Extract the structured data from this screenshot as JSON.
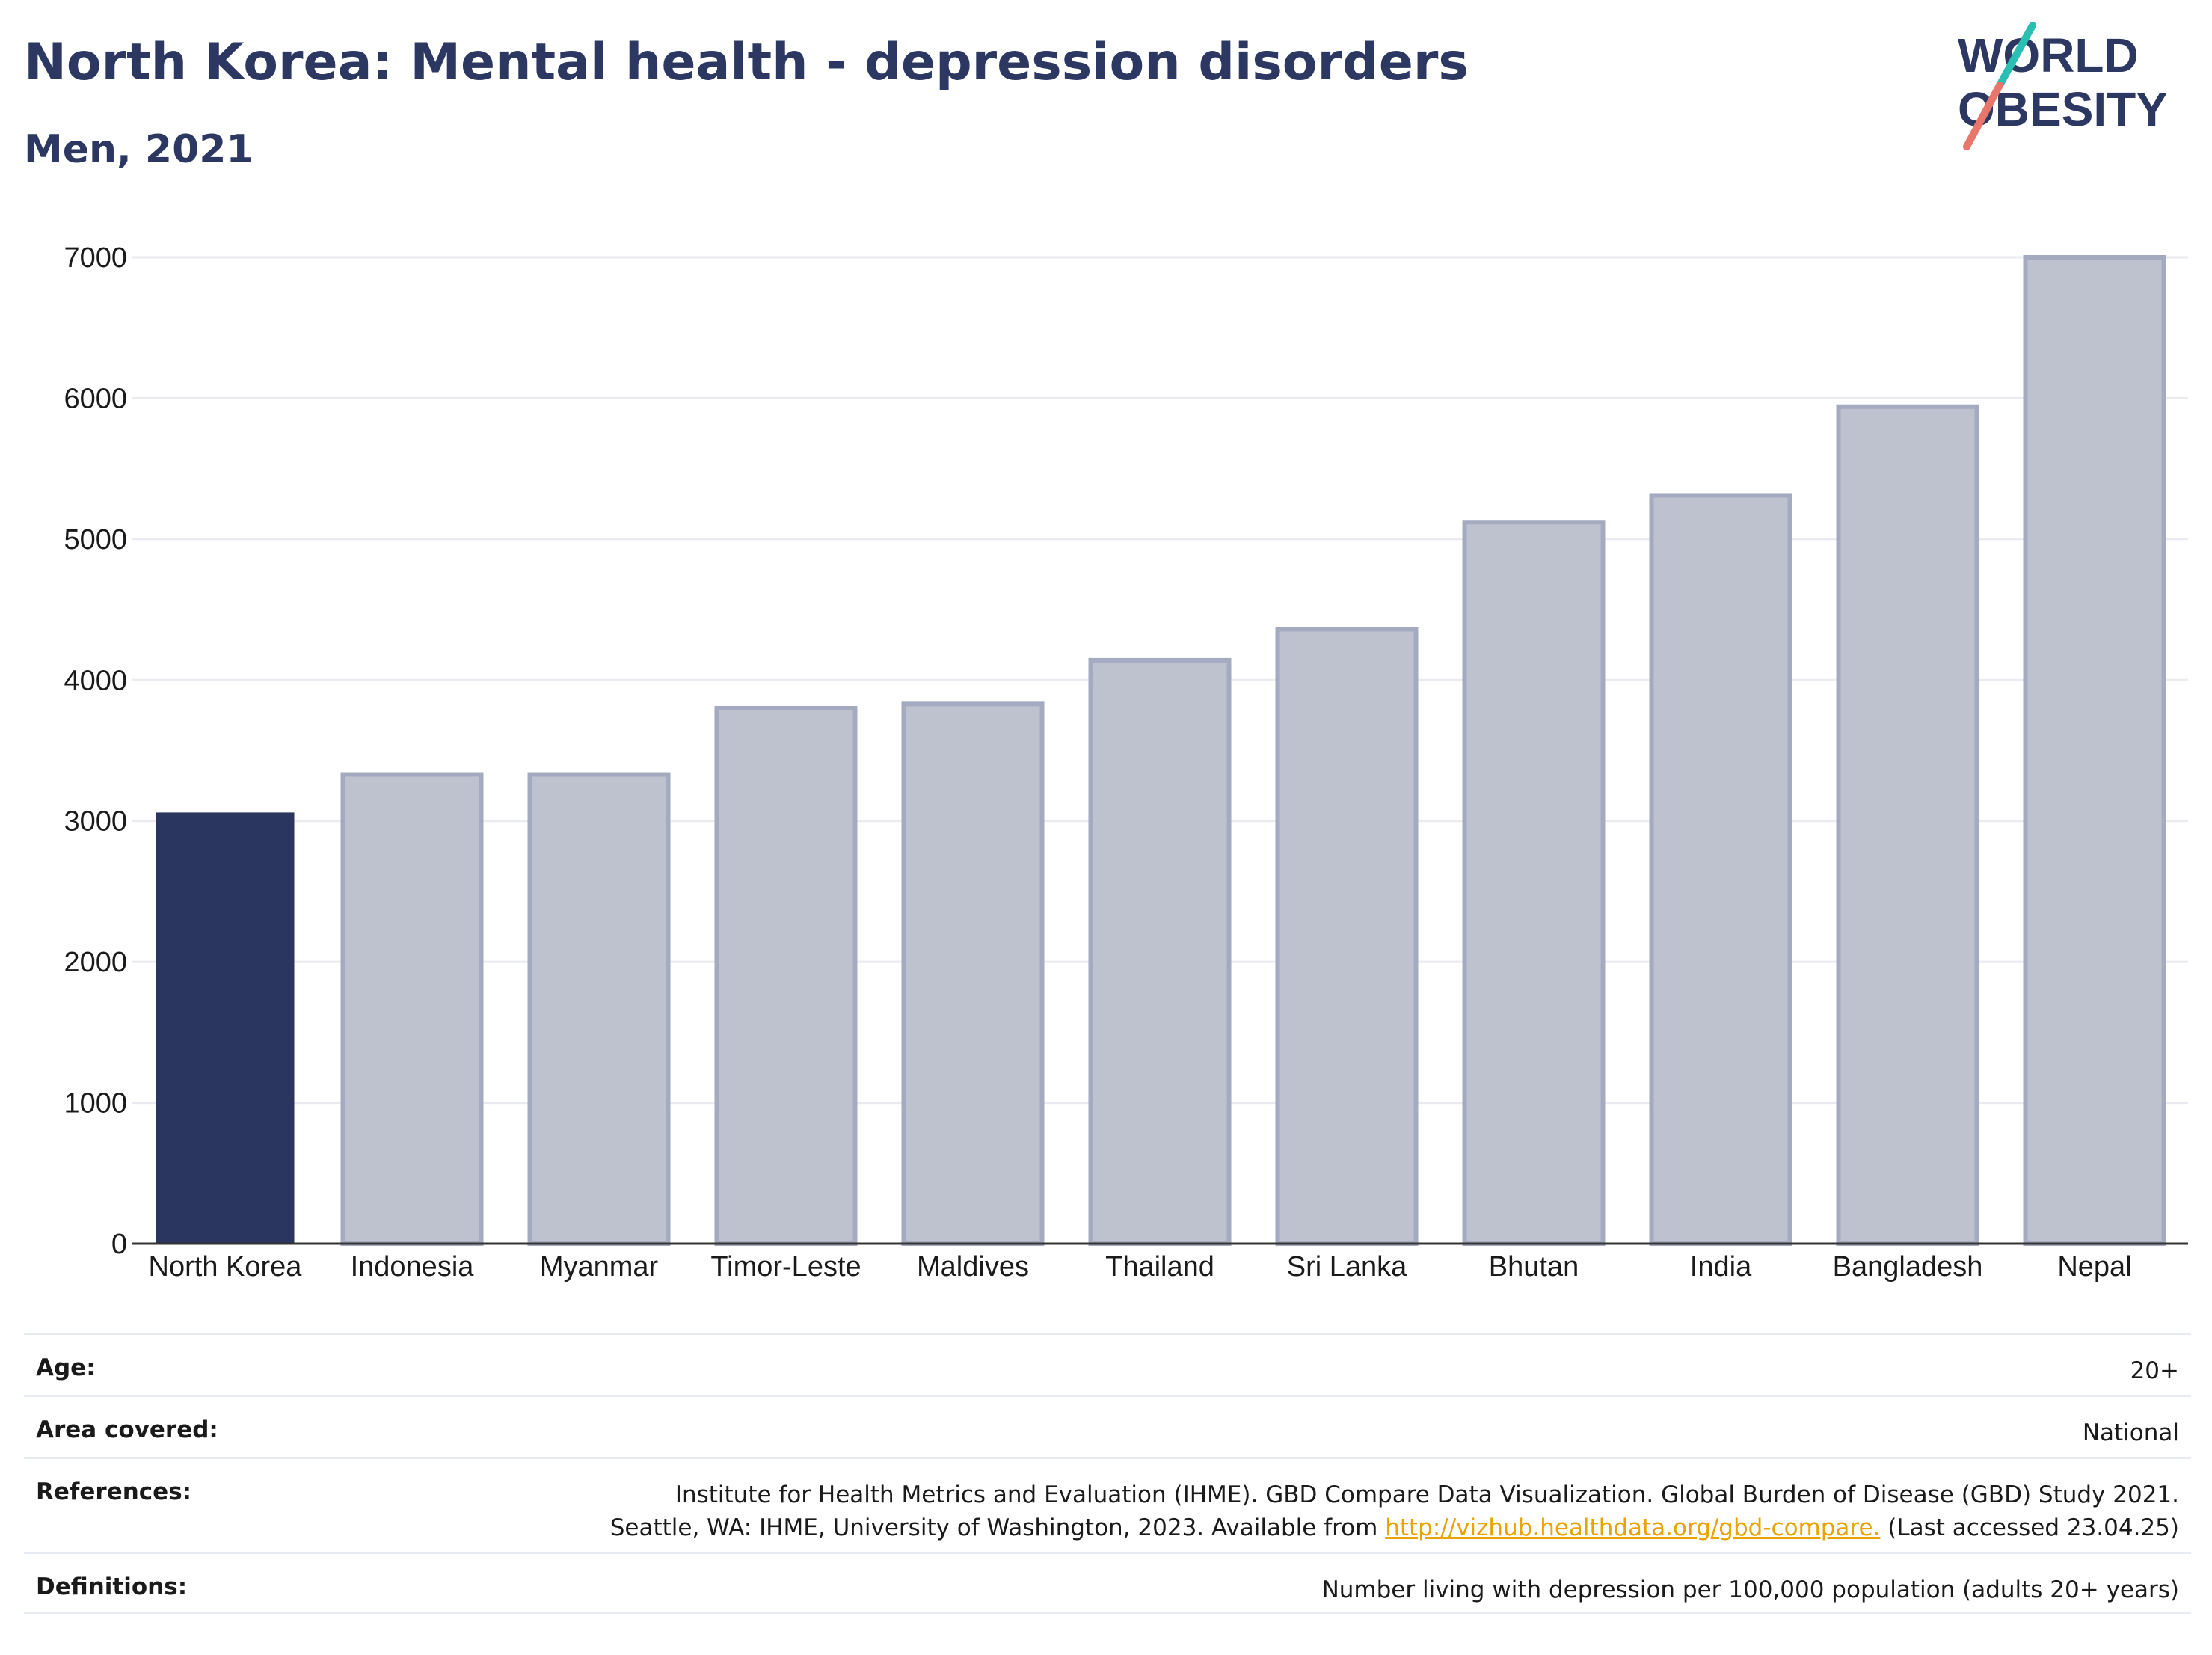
{
  "header": {
    "title": "North Korea: Mental health - depression disorders",
    "subtitle": "Men, 2021"
  },
  "logo": {
    "line1": "WORLD",
    "line2": "OBESITY"
  },
  "colors": {
    "highlight": "#2b3660",
    "others": "#bec2cf",
    "others_border": "#a4aac0",
    "title": "#2c3862",
    "slash_teal": "#2bbfb3",
    "slash_coral": "#e8766b",
    "link": "#e8a300"
  },
  "chart_data": {
    "type": "bar",
    "categories": [
      "North Korea",
      "Indonesia",
      "Myanmar",
      "Timor-Leste",
      "Maldives",
      "Thailand",
      "Sri Lanka",
      "Bhutan",
      "India",
      "Bangladesh",
      "Nepal"
    ],
    "values": [
      3060,
      3330,
      3330,
      3800,
      3830,
      4140,
      4360,
      5120,
      5310,
      5940,
      7000
    ],
    "highlight": "North Korea",
    "ylim": [
      0,
      7000
    ],
    "yticks": [
      0,
      1000,
      2000,
      3000,
      4000,
      5000,
      6000,
      7000
    ],
    "grid": true,
    "legend": "none"
  },
  "footer": {
    "age": {
      "label": "Age:",
      "value": "20+"
    },
    "area": {
      "label": "Area covered:",
      "value": "National"
    },
    "references": {
      "label": "References:",
      "line1": "Institute for Health Metrics and Evaluation (IHME). GBD Compare Data Visualization. Global Burden of Disease (GBD) Study 2021.",
      "line2_pre": "Seattle, WA: IHME, University of Washington, 2023. Available from ",
      "link": "http://vizhub.healthdata.org/gbd-compare.",
      "line2_post": " (Last accessed 23.04.25)"
    },
    "definitions": {
      "label": "Definitions:",
      "value": "Number living with depression per 100,000 population (adults 20+ years)"
    }
  }
}
